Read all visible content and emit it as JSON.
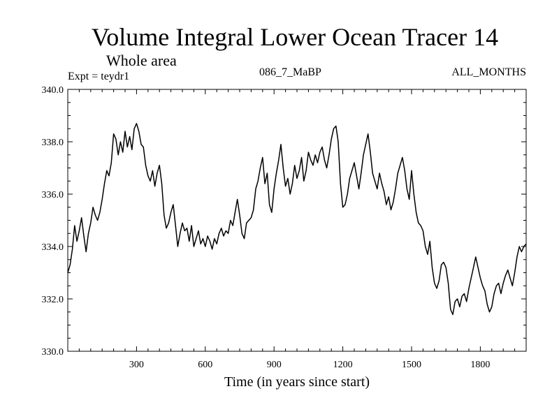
{
  "header": {
    "title": "Volume Integral Lower Ocean Tracer 14",
    "subtitle": "Whole area",
    "experiment": "Expt = teydr1",
    "run": "086_7_MaBP",
    "months": "ALL_MONTHS"
  },
  "chart_data": {
    "type": "line",
    "title": "Volume Integral Lower Ocean Tracer 14",
    "xlabel": "Time (in years since start)",
    "ylabel": "",
    "xlim": [
      0,
      2000
    ],
    "ylim": [
      330.0,
      340.0
    ],
    "xticks": [
      300,
      600,
      900,
      1200,
      1500,
      1800
    ],
    "xtick_labels": [
      "300",
      "600",
      "900",
      "1200",
      "1500",
      "1800"
    ],
    "yticks": [
      330.0,
      332.0,
      334.0,
      336.0,
      338.0,
      340.0
    ],
    "ytick_labels": [
      "330.0",
      "332.0",
      "334.0",
      "336.0",
      "338.0",
      "340.0"
    ],
    "grid": false,
    "line_color": "#000000",
    "series": [
      {
        "x": [
          0,
          10,
          20,
          30,
          40,
          50,
          60,
          70,
          80,
          90,
          100,
          110,
          120,
          130,
          140,
          150,
          160,
          170,
          180,
          190,
          200,
          210,
          220,
          230,
          240,
          250,
          260,
          270,
          280,
          290,
          300,
          310,
          320,
          330,
          340,
          350,
          360,
          370,
          380,
          390,
          400,
          410,
          420,
          430,
          440,
          450,
          460,
          470,
          480,
          490,
          500,
          510,
          520,
          530,
          540,
          550,
          560,
          570,
          580,
          590,
          600,
          610,
          620,
          630,
          640,
          650,
          660,
          670,
          680,
          690,
          700,
          710,
          720,
          730,
          740,
          750,
          760,
          770,
          780,
          790,
          800,
          810,
          820,
          830,
          840,
          850,
          860,
          870,
          880,
          890,
          900,
          910,
          920,
          930,
          940,
          950,
          960,
          970,
          980,
          990,
          1000,
          1010,
          1020,
          1030,
          1040,
          1050,
          1060,
          1070,
          1080,
          1090,
          1100,
          1110,
          1120,
          1130,
          1140,
          1150,
          1160,
          1170,
          1180,
          1190,
          1200,
          1210,
          1220,
          1230,
          1240,
          1250,
          1260,
          1270,
          1280,
          1290,
          1300,
          1310,
          1320,
          1330,
          1340,
          1350,
          1360,
          1370,
          1380,
          1390,
          1400,
          1410,
          1420,
          1430,
          1440,
          1450,
          1460,
          1470,
          1480,
          1490,
          1500,
          1510,
          1520,
          1530,
          1540,
          1550,
          1560,
          1570,
          1580,
          1590,
          1600,
          1610,
          1620,
          1630,
          1640,
          1650,
          1660,
          1670,
          1680,
          1690,
          1700,
          1710,
          1720,
          1730,
          1740,
          1750,
          1760,
          1770,
          1780,
          1790,
          1800,
          1810,
          1820,
          1830,
          1840,
          1850,
          1860,
          1870,
          1880,
          1890,
          1900,
          1910,
          1920,
          1930,
          1940,
          1950,
          1960,
          1970,
          1980,
          1990,
          2000
        ],
        "y": [
          333.0,
          333.3,
          333.9,
          334.8,
          334.2,
          334.6,
          335.1,
          334.4,
          333.8,
          334.5,
          334.9,
          335.5,
          335.2,
          335.0,
          335.3,
          335.8,
          336.4,
          336.9,
          336.7,
          337.2,
          338.3,
          338.1,
          337.5,
          338.0,
          337.6,
          338.4,
          337.8,
          338.2,
          337.7,
          338.5,
          338.7,
          338.4,
          337.9,
          337.8,
          337.1,
          336.7,
          336.5,
          336.9,
          336.3,
          336.8,
          337.1,
          336.4,
          335.2,
          334.7,
          334.9,
          335.3,
          335.6,
          334.8,
          334.0,
          334.5,
          334.9,
          334.6,
          334.7,
          334.2,
          334.8,
          334.0,
          334.3,
          334.6,
          334.1,
          334.3,
          334.0,
          334.4,
          334.2,
          333.9,
          334.3,
          334.1,
          334.5,
          334.7,
          334.4,
          334.6,
          334.5,
          335.0,
          334.8,
          335.3,
          335.8,
          335.2,
          334.5,
          334.3,
          334.9,
          335.0,
          335.1,
          335.4,
          336.2,
          336.5,
          337.0,
          337.4,
          336.4,
          336.8,
          335.6,
          335.3,
          336.2,
          336.8,
          337.3,
          337.9,
          337.0,
          336.3,
          336.6,
          336.0,
          336.4,
          337.1,
          336.6,
          336.9,
          337.4,
          336.5,
          336.9,
          337.6,
          337.3,
          337.1,
          337.5,
          337.2,
          337.6,
          337.8,
          337.3,
          337.0,
          337.5,
          338.1,
          338.5,
          338.6,
          338.0,
          336.4,
          335.5,
          335.6,
          336.0,
          336.6,
          336.9,
          337.2,
          336.7,
          336.2,
          336.8,
          337.5,
          337.9,
          338.3,
          337.6,
          336.8,
          336.5,
          336.2,
          336.8,
          336.4,
          336.1,
          335.6,
          335.9,
          335.4,
          335.7,
          336.2,
          336.8,
          337.1,
          337.4,
          336.9,
          336.2,
          335.8,
          336.9,
          336.0,
          335.3,
          334.9,
          334.8,
          334.6,
          334.0,
          333.7,
          334.2,
          333.2,
          332.6,
          332.4,
          332.7,
          333.3,
          333.4,
          333.2,
          332.6,
          331.6,
          331.4,
          331.9,
          332.0,
          331.7,
          332.1,
          332.2,
          331.9,
          332.4,
          332.8,
          333.2,
          333.6,
          333.2,
          332.8,
          332.5,
          332.3,
          331.8,
          331.5,
          331.7,
          332.2,
          332.5,
          332.6,
          332.2,
          332.6,
          332.9,
          333.1,
          332.8,
          332.5,
          333.0,
          333.6,
          334.0,
          333.8,
          334.0,
          334.1
        ]
      }
    ]
  }
}
